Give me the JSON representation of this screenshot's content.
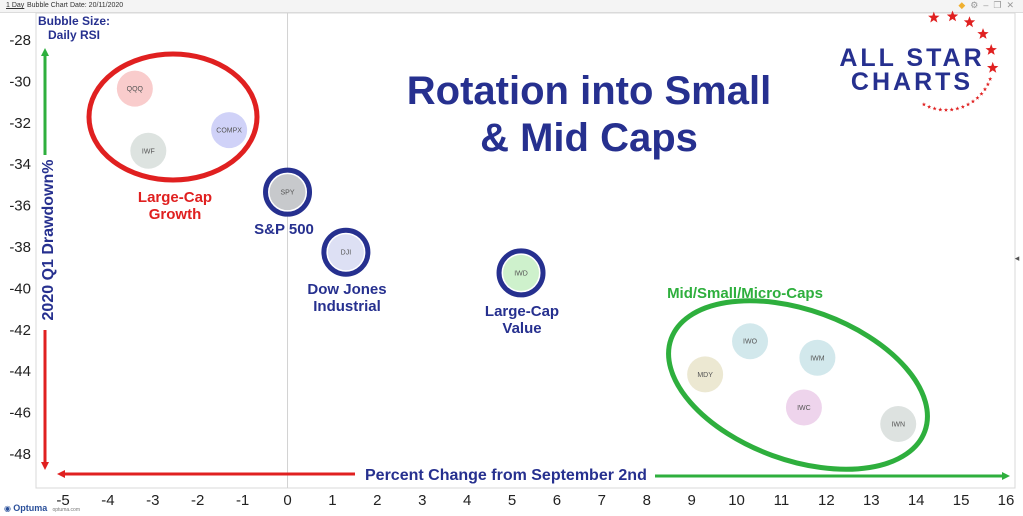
{
  "toolbar": {
    "period": "1 Day",
    "chart_type": "Bubble Chart",
    "date_label": "Date: 20/11/2020"
  },
  "chart_data": {
    "type": "scatter",
    "subtype": "bubble",
    "title": "Rotation into Small & Mid Caps",
    "xlabel": "Percent Change from September 2nd",
    "ylabel": "2020 Q1 Drawdown%",
    "size_legend": [
      "Bubble Size:",
      "Daily RSI"
    ],
    "xlim": [
      -5.5,
      16
    ],
    "ylim": [
      -49,
      -27.2
    ],
    "xticks": [
      -5,
      -4,
      -3,
      -2,
      -1,
      0,
      1,
      2,
      3,
      4,
      5,
      6,
      7,
      8,
      9,
      10,
      11,
      12,
      13,
      14,
      15,
      16
    ],
    "yticks": [
      -48,
      -46,
      -44,
      -42,
      -40,
      -38,
      -36,
      -34,
      -32,
      -30,
      -28
    ],
    "zero_line_x": 0,
    "points": [
      {
        "label": "QQQ",
        "x": -3.4,
        "y": -30.4,
        "color": "#f9cccc"
      },
      {
        "label": "IWF",
        "x": -3.1,
        "y": -33.4,
        "color": "#dde3e0"
      },
      {
        "label": "COMPX",
        "x": -1.3,
        "y": -32.4,
        "color": "#d0d2f8"
      },
      {
        "label": "SPY",
        "x": 0.0,
        "y": -35.4,
        "color": "#c7c9cc"
      },
      {
        "label": "DJI",
        "x": 1.3,
        "y": -38.3,
        "color": "#dde0f4"
      },
      {
        "label": "IWD",
        "x": 5.2,
        "y": -39.3,
        "color": "#cef1cc"
      },
      {
        "label": "IWO",
        "x": 10.3,
        "y": -42.6,
        "color": "#d2e8ec"
      },
      {
        "label": "MDY",
        "x": 9.3,
        "y": -44.2,
        "color": "#ece8d2"
      },
      {
        "label": "IWM",
        "x": 11.8,
        "y": -43.4,
        "color": "#d2e8ec"
      },
      {
        "label": "IWC",
        "x": 11.5,
        "y": -45.8,
        "color": "#eed4ec"
      },
      {
        "label": "IWN",
        "x": 13.6,
        "y": -46.6,
        "color": "#dde2e0"
      }
    ],
    "annotations": [
      {
        "lines": [
          "Large-Cap",
          "Growth"
        ],
        "color": "#e02020"
      },
      {
        "lines": [
          "S&P 500"
        ],
        "color": "#26308f"
      },
      {
        "lines": [
          "Dow Jones",
          "Industrial"
        ],
        "color": "#26308f"
      },
      {
        "lines": [
          "Large-Cap",
          "Value"
        ],
        "color": "#26308f"
      },
      {
        "lines": [
          "Mid/Small/Micro-Caps"
        ],
        "color": "#2eaf3d"
      }
    ],
    "colors": {
      "title": "#26308f",
      "red": "#e02020",
      "navy": "#26308f",
      "green": "#2eaf3d"
    }
  },
  "logo": {
    "line1": "ALL STAR",
    "line2": "CHARTS"
  },
  "footer": {
    "brand": "Optuma",
    "site": "optuma.com"
  }
}
